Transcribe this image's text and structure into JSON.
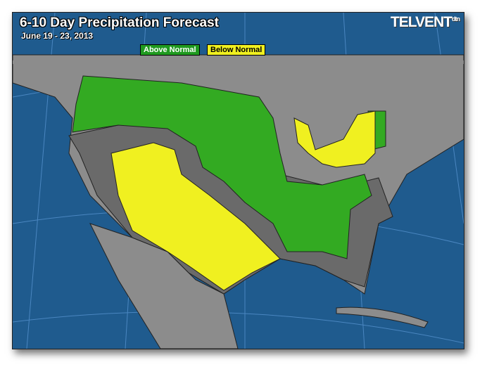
{
  "header": {
    "title": "6-10 Day Precipitation Forecast",
    "date_range": "June 19 - 23, 2013",
    "logo": "TELVENT",
    "logo_sub": "dtn"
  },
  "legend": [
    {
      "label": "Above Normal",
      "color": "#1f9a1f"
    },
    {
      "label": "Below Normal",
      "color": "#f0f020"
    }
  ],
  "colors": {
    "ocean": "#1f5b8e",
    "land": "#8c8c8c",
    "normal": "#6a6a6a",
    "above": "#33aa22",
    "below": "#f0f020"
  }
}
